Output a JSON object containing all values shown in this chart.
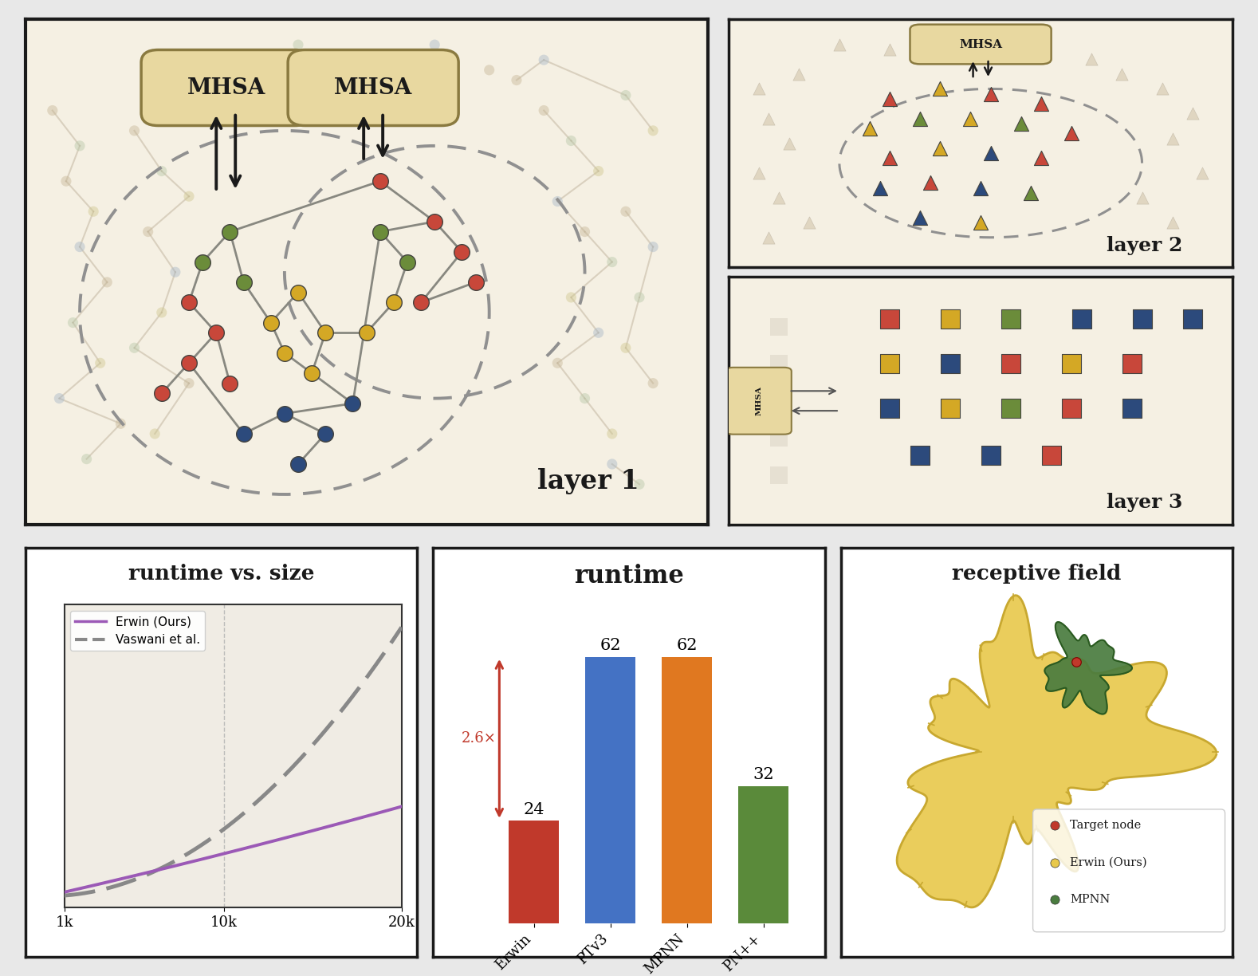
{
  "panel_bg": "#f5f0e3",
  "white_bg": "#ffffff",
  "panel_edge": "#1a1a1a",
  "mhsa_bg": "#e8d8a0",
  "mhsa_edge": "#8a7a40",
  "node_colors": {
    "red": "#c8473a",
    "orange_red": "#c84830",
    "olive": "#6b8c3a",
    "yellow": "#d4a825",
    "blue": "#2c4a7c",
    "bg_tan": "#c8b898",
    "bg_green": "#b8c4a0",
    "bg_blue": "#a8b8c8",
    "bg_yellow": "#d0c890"
  },
  "runtime_chart": {
    "title": "runtime vs. size",
    "erwin_color": "#9b59b6",
    "vaswani_color": "#888888",
    "erwin_label": "Erwin (Ours)",
    "vaswani_label": "Vaswani et al.",
    "xticks": [
      "1k",
      "10k",
      "20k"
    ]
  },
  "bar_chart": {
    "title": "runtime",
    "bars": [
      {
        "label": "Erwin",
        "value": 24,
        "color": "#c0392b"
      },
      {
        "label": "PTv3",
        "value": 62,
        "color": "#4472c4"
      },
      {
        "label": "MPNN",
        "value": 62,
        "color": "#e07820"
      },
      {
        "label": "PN++",
        "value": 32,
        "color": "#5a8a3a"
      }
    ],
    "annotation": "2.6×"
  },
  "receptive_field": {
    "title": "receptive field",
    "legend_items": [
      {
        "label": "Target node",
        "color": "#c0392b"
      },
      {
        "label": "Erwin (Ours)",
        "color": "#e8c84a"
      },
      {
        "label": "MPNN",
        "color": "#4a7c3f"
      }
    ]
  }
}
